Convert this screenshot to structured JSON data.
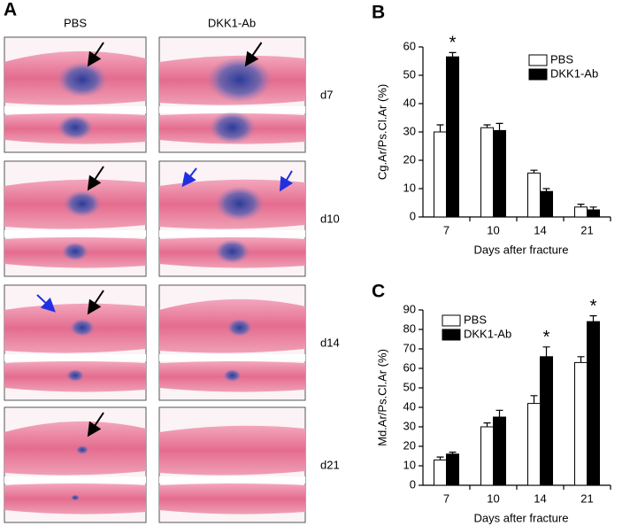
{
  "panel_a": {
    "label": "A",
    "columns": [
      "PBS",
      "DKK1-Ab"
    ],
    "rows": [
      "d7",
      "d10",
      "d14",
      "d21"
    ]
  },
  "chart_data": [
    {
      "type": "bar",
      "panel_label": "B",
      "ylabel": "Cg.Ar/Ps.Cl.Ar (%)",
      "xlabel": "Days after fracture",
      "categories": [
        "7",
        "10",
        "14",
        "21"
      ],
      "series": [
        {
          "name": "PBS",
          "color": "#ffffff",
          "values": [
            30,
            31.5,
            15.5,
            3.5
          ],
          "errors": [
            2.5,
            1,
            1,
            1
          ]
        },
        {
          "name": "DKK1-Ab",
          "color": "#000000",
          "values": [
            56.5,
            30.5,
            9,
            2.5
          ],
          "errors": [
            1.5,
            2.5,
            1,
            1
          ]
        }
      ],
      "annotations": [
        {
          "text": "*",
          "series": 1,
          "index": 0
        }
      ],
      "ylim": [
        0,
        60
      ],
      "yticks": [
        0,
        10,
        20,
        30,
        40,
        50,
        60
      ],
      "legend": "top-right"
    },
    {
      "type": "bar",
      "panel_label": "C",
      "ylabel": "Md.Ar/Ps.Cl.Ar (%)",
      "xlabel": "Days after fracture",
      "categories": [
        "7",
        "10",
        "14",
        "21"
      ],
      "series": [
        {
          "name": "PBS",
          "color": "#ffffff",
          "values": [
            13,
            30,
            42,
            63
          ],
          "errors": [
            1.5,
            2,
            4,
            3
          ]
        },
        {
          "name": "DKK1-Ab",
          "color": "#000000",
          "values": [
            16,
            35,
            66,
            84
          ],
          "errors": [
            1,
            3.5,
            5,
            3
          ]
        }
      ],
      "annotations": [
        {
          "text": "*",
          "series": 1,
          "index": 2
        },
        {
          "text": "*",
          "series": 1,
          "index": 3
        }
      ],
      "ylim": [
        0,
        90
      ],
      "yticks": [
        0,
        10,
        20,
        30,
        40,
        50,
        60,
        70,
        80,
        90
      ],
      "legend": "top-left"
    }
  ]
}
